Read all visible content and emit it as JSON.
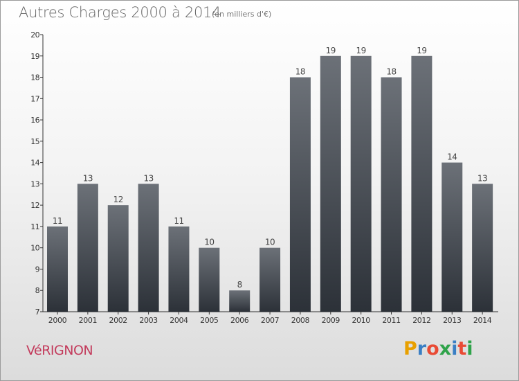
{
  "header": {
    "title": "Autres Charges 2000 à 2014",
    "subtitle": "(en milliers d'€)"
  },
  "footer": {
    "commune": "VéRIGNON",
    "logo_letters": [
      "P",
      "r",
      "o",
      "x",
      "i",
      "t",
      "i"
    ],
    "logo_colors": [
      "#e8a000",
      "#3a7fc4",
      "#e94b35",
      "#2fa34a",
      "#3a7fc4",
      "#e94b35",
      "#2fa34a"
    ]
  },
  "colors": {
    "bar_top": "#6c7178",
    "bar_bottom": "#2c3138",
    "axis": "#333333"
  },
  "chart_data": {
    "type": "bar",
    "title": "Autres Charges 2000 à 2014",
    "subtitle": "(en milliers d'€)",
    "categories": [
      "2000",
      "2001",
      "2002",
      "2003",
      "2004",
      "2005",
      "2006",
      "2007",
      "2008",
      "2009",
      "2010",
      "2011",
      "2012",
      "2013",
      "2014"
    ],
    "values": [
      11,
      13,
      12,
      13,
      11,
      10,
      8,
      10,
      18,
      19,
      19,
      18,
      19,
      14,
      13
    ],
    "yticks": [
      7,
      8,
      9,
      10,
      11,
      12,
      13,
      14,
      15,
      16,
      17,
      18,
      19,
      20
    ],
    "ylim": [
      7,
      20
    ],
    "grid": false,
    "legend": "none"
  }
}
